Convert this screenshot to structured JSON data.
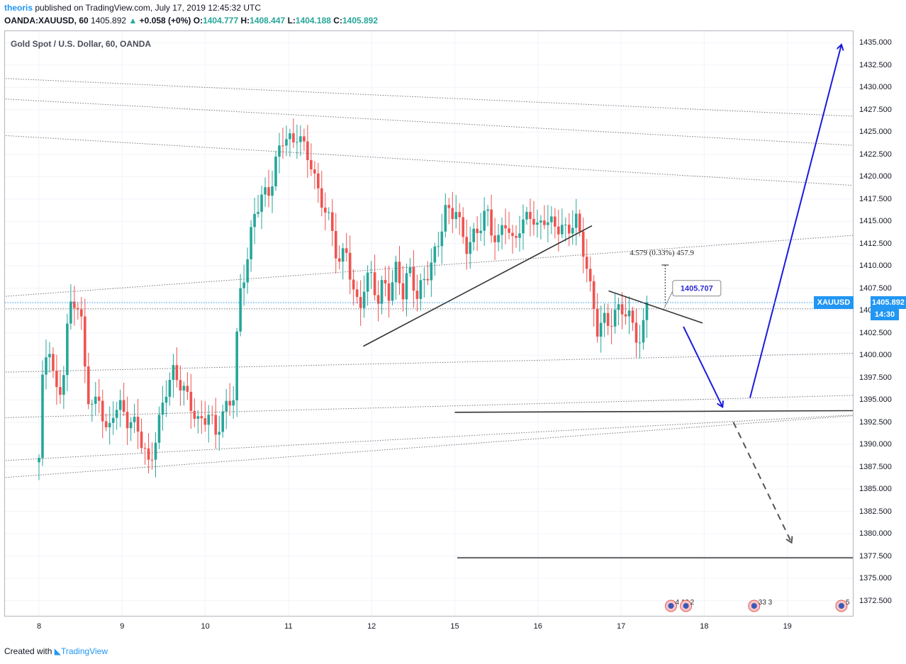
{
  "header": {
    "user": "theoris",
    "published": "published on TradingView.com, July 17, 2019 12:45:32 UTC",
    "symbol": "OANDA:XAUUSD, 60",
    "last": "1405.892",
    "change": "+0.058 (+0%)",
    "o_label": "O:",
    "o": "1404.777",
    "h_label": "H:",
    "h": "1408.447",
    "l_label": "L:",
    "l": "1404.188",
    "c_label": "C:",
    "c": "1405.892"
  },
  "footer": {
    "created_with": "Created with",
    "brand": "TradingView"
  },
  "badges": {
    "symbol": "XAUUSD",
    "price": "1405.892",
    "time": "14:30"
  },
  "colors": {
    "up": "#26a69a",
    "down": "#ef5350",
    "accent": "#2196f3",
    "arrow": "#1a1adf"
  },
  "chart_data": {
    "type": "candlestick",
    "title": "Gold Spot / U.S. Dollar, 60, OANDA",
    "y_ticks": [
      1435,
      1432.5,
      1430,
      1427.5,
      1425,
      1422.5,
      1420,
      1417.5,
      1415,
      1412.5,
      1410,
      1407.5,
      1405,
      1402.5,
      1400,
      1397.5,
      1395,
      1392.5,
      1390,
      1387.5,
      1385,
      1382.5,
      1380,
      1377.5,
      1375,
      1372.5
    ],
    "ylim": [
      1370.8,
      1436.3
    ],
    "x_labels": [
      "8",
      "9",
      "10",
      "11",
      "12",
      "15",
      "16",
      "17",
      "18",
      "19"
    ],
    "x_label_days": [
      0,
      1,
      2,
      3,
      4,
      5,
      6,
      7,
      8,
      9
    ],
    "last_price": 1405.892,
    "segments": [
      [
        0,
        1388
      ],
      [
        0.05,
        1398
      ],
      [
        0.12,
        1401.5
      ],
      [
        0.2,
        1396
      ],
      [
        0.28,
        1397
      ],
      [
        0.35,
        1404
      ],
      [
        0.4,
        1406.5
      ],
      [
        0.5,
        1404
      ],
      [
        0.58,
        1395.5
      ],
      [
        0.65,
        1394
      ],
      [
        0.72,
        1396
      ],
      [
        0.82,
        1391
      ],
      [
        0.9,
        1394
      ],
      [
        1.0,
        1393.5
      ],
      [
        1.08,
        1392
      ],
      [
        1.18,
        1392.5
      ],
      [
        1.32,
        1388
      ],
      [
        1.42,
        1391
      ],
      [
        1.52,
        1395.5
      ],
      [
        1.62,
        1398
      ],
      [
        1.72,
        1397
      ],
      [
        1.82,
        1395
      ],
      [
        1.92,
        1392
      ],
      [
        2.05,
        1393
      ],
      [
        2.12,
        1391
      ],
      [
        2.22,
        1394
      ],
      [
        2.3,
        1395.5
      ],
      [
        2.35,
        1396
      ],
      [
        2.4,
        1406
      ],
      [
        2.5,
        1410
      ],
      [
        2.6,
        1416
      ],
      [
        2.68,
        1418
      ],
      [
        2.78,
        1419
      ],
      [
        2.85,
        1422
      ],
      [
        2.95,
        1424.5
      ],
      [
        3.05,
        1423
      ],
      [
        3.12,
        1425
      ],
      [
        3.2,
        1423
      ],
      [
        3.28,
        1422
      ],
      [
        3.35,
        1418.5
      ],
      [
        3.45,
        1416
      ],
      [
        3.52,
        1413.5
      ],
      [
        3.6,
        1410
      ],
      [
        3.7,
        1412
      ],
      [
        3.78,
        1407.5
      ],
      [
        3.85,
        1405.5
      ],
      [
        3.92,
        1408
      ],
      [
        4.0,
        1408.5
      ],
      [
        4.08,
        1405.5
      ],
      [
        4.15,
        1408.5
      ],
      [
        4.22,
        1407
      ],
      [
        4.3,
        1410.5
      ],
      [
        4.38,
        1407
      ],
      [
        4.45,
        1409.5
      ],
      [
        4.55,
        1406
      ],
      [
        4.62,
        1408
      ],
      [
        4.7,
        1410
      ],
      [
        4.8,
        1413
      ],
      [
        4.88,
        1416.5
      ],
      [
        4.95,
        1415.5
      ],
      [
        5.02,
        1416
      ],
      [
        5.08,
        1413
      ],
      [
        5.15,
        1412
      ],
      [
        5.22,
        1413.5
      ],
      [
        5.3,
        1415
      ],
      [
        5.38,
        1416.5
      ],
      [
        5.45,
        1413.5
      ],
      [
        5.52,
        1412
      ],
      [
        5.6,
        1415
      ],
      [
        5.7,
        1412.5
      ],
      [
        5.78,
        1415
      ],
      [
        5.85,
        1415.5
      ],
      [
        5.92,
        1416
      ],
      [
        6.0,
        1413.5
      ],
      [
        6.08,
        1415
      ],
      [
        6.18,
        1414.5
      ],
      [
        6.28,
        1415
      ],
      [
        6.35,
        1414
      ],
      [
        6.45,
        1415.5
      ],
      [
        6.5,
        1413
      ],
      [
        6.58,
        1410
      ],
      [
        6.65,
        1406
      ],
      [
        6.72,
        1403
      ],
      [
        6.78,
        1404.5
      ],
      [
        6.85,
        1404
      ],
      [
        6.92,
        1404.5
      ],
      [
        7.0,
        1405
      ],
      [
        7.08,
        1404
      ],
      [
        7.15,
        1403
      ],
      [
        7.22,
        1401.5
      ],
      [
        7.28,
        1404
      ],
      [
        7.34,
        1405.892
      ]
    ],
    "trend_lines": [
      {
        "name": "rising-trendline",
        "x1": 3.9,
        "y1": 1401,
        "x2": 6.65,
        "y2": 1414.5,
        "style": "solid"
      },
      {
        "name": "falling-trendline",
        "x1": 6.85,
        "y1": 1407.2,
        "x2": 7.98,
        "y2": 1403.6,
        "style": "solid"
      },
      {
        "name": "support-line",
        "x1": 5.0,
        "y1": 1393.6,
        "x2": 10.2,
        "y2": 1393.8,
        "style": "solid"
      },
      {
        "name": "target-line",
        "x1": 5.03,
        "y1": 1377.3,
        "x2": 10.2,
        "y2": 1377.3,
        "style": "solid"
      }
    ],
    "channel_lines": [
      {
        "x1": -0.4,
        "y1": 1431,
        "x2": 10.2,
        "y2": 1426.6
      },
      {
        "x1": -0.4,
        "y1": 1428.7,
        "x2": 10.2,
        "y2": 1423.3
      },
      {
        "x1": -0.4,
        "y1": 1424.6,
        "x2": 10.2,
        "y2": 1418.8
      },
      {
        "x1": -0.4,
        "y1": 1406.6,
        "x2": 10.2,
        "y2": 1413.7
      },
      {
        "x1": -0.4,
        "y1": 1405.2,
        "x2": 10.2,
        "y2": 1405.2
      },
      {
        "x1": -0.4,
        "y1": 1398.1,
        "x2": 10.2,
        "y2": 1400.3
      },
      {
        "x1": -0.4,
        "y1": 1393,
        "x2": 10.2,
        "y2": 1395.6
      },
      {
        "x1": -0.4,
        "y1": 1388.2,
        "x2": 10.2,
        "y2": 1393.5
      },
      {
        "x1": -0.4,
        "y1": 1386.3,
        "x2": 10.2,
        "y2": 1393.5
      }
    ],
    "arrows": [
      {
        "name": "down-arrow",
        "x1": 7.75,
        "y1": 1403.2,
        "x2": 8.22,
        "y2": 1394.2,
        "style": "solid"
      },
      {
        "name": "up-arrow",
        "x1": 8.55,
        "y1": 1395.2,
        "x2": 9.65,
        "y2": 1434.8,
        "style": "solid"
      },
      {
        "name": "dashed-down-arrow",
        "x1": 8.35,
        "y1": 1392.5,
        "x2": 9.05,
        "y2": 1379,
        "style": "dashed"
      }
    ],
    "annotations": {
      "measure": "4.579 (0.33%) 457.9",
      "callout": "1405.707"
    },
    "events": [
      {
        "label": "4 12",
        "x": 7.6
      },
      {
        "label": "2",
        "x": 7.78
      },
      {
        "label": "33 3",
        "x": 8.6
      },
      {
        "label": "5",
        "x": 9.65
      }
    ]
  }
}
